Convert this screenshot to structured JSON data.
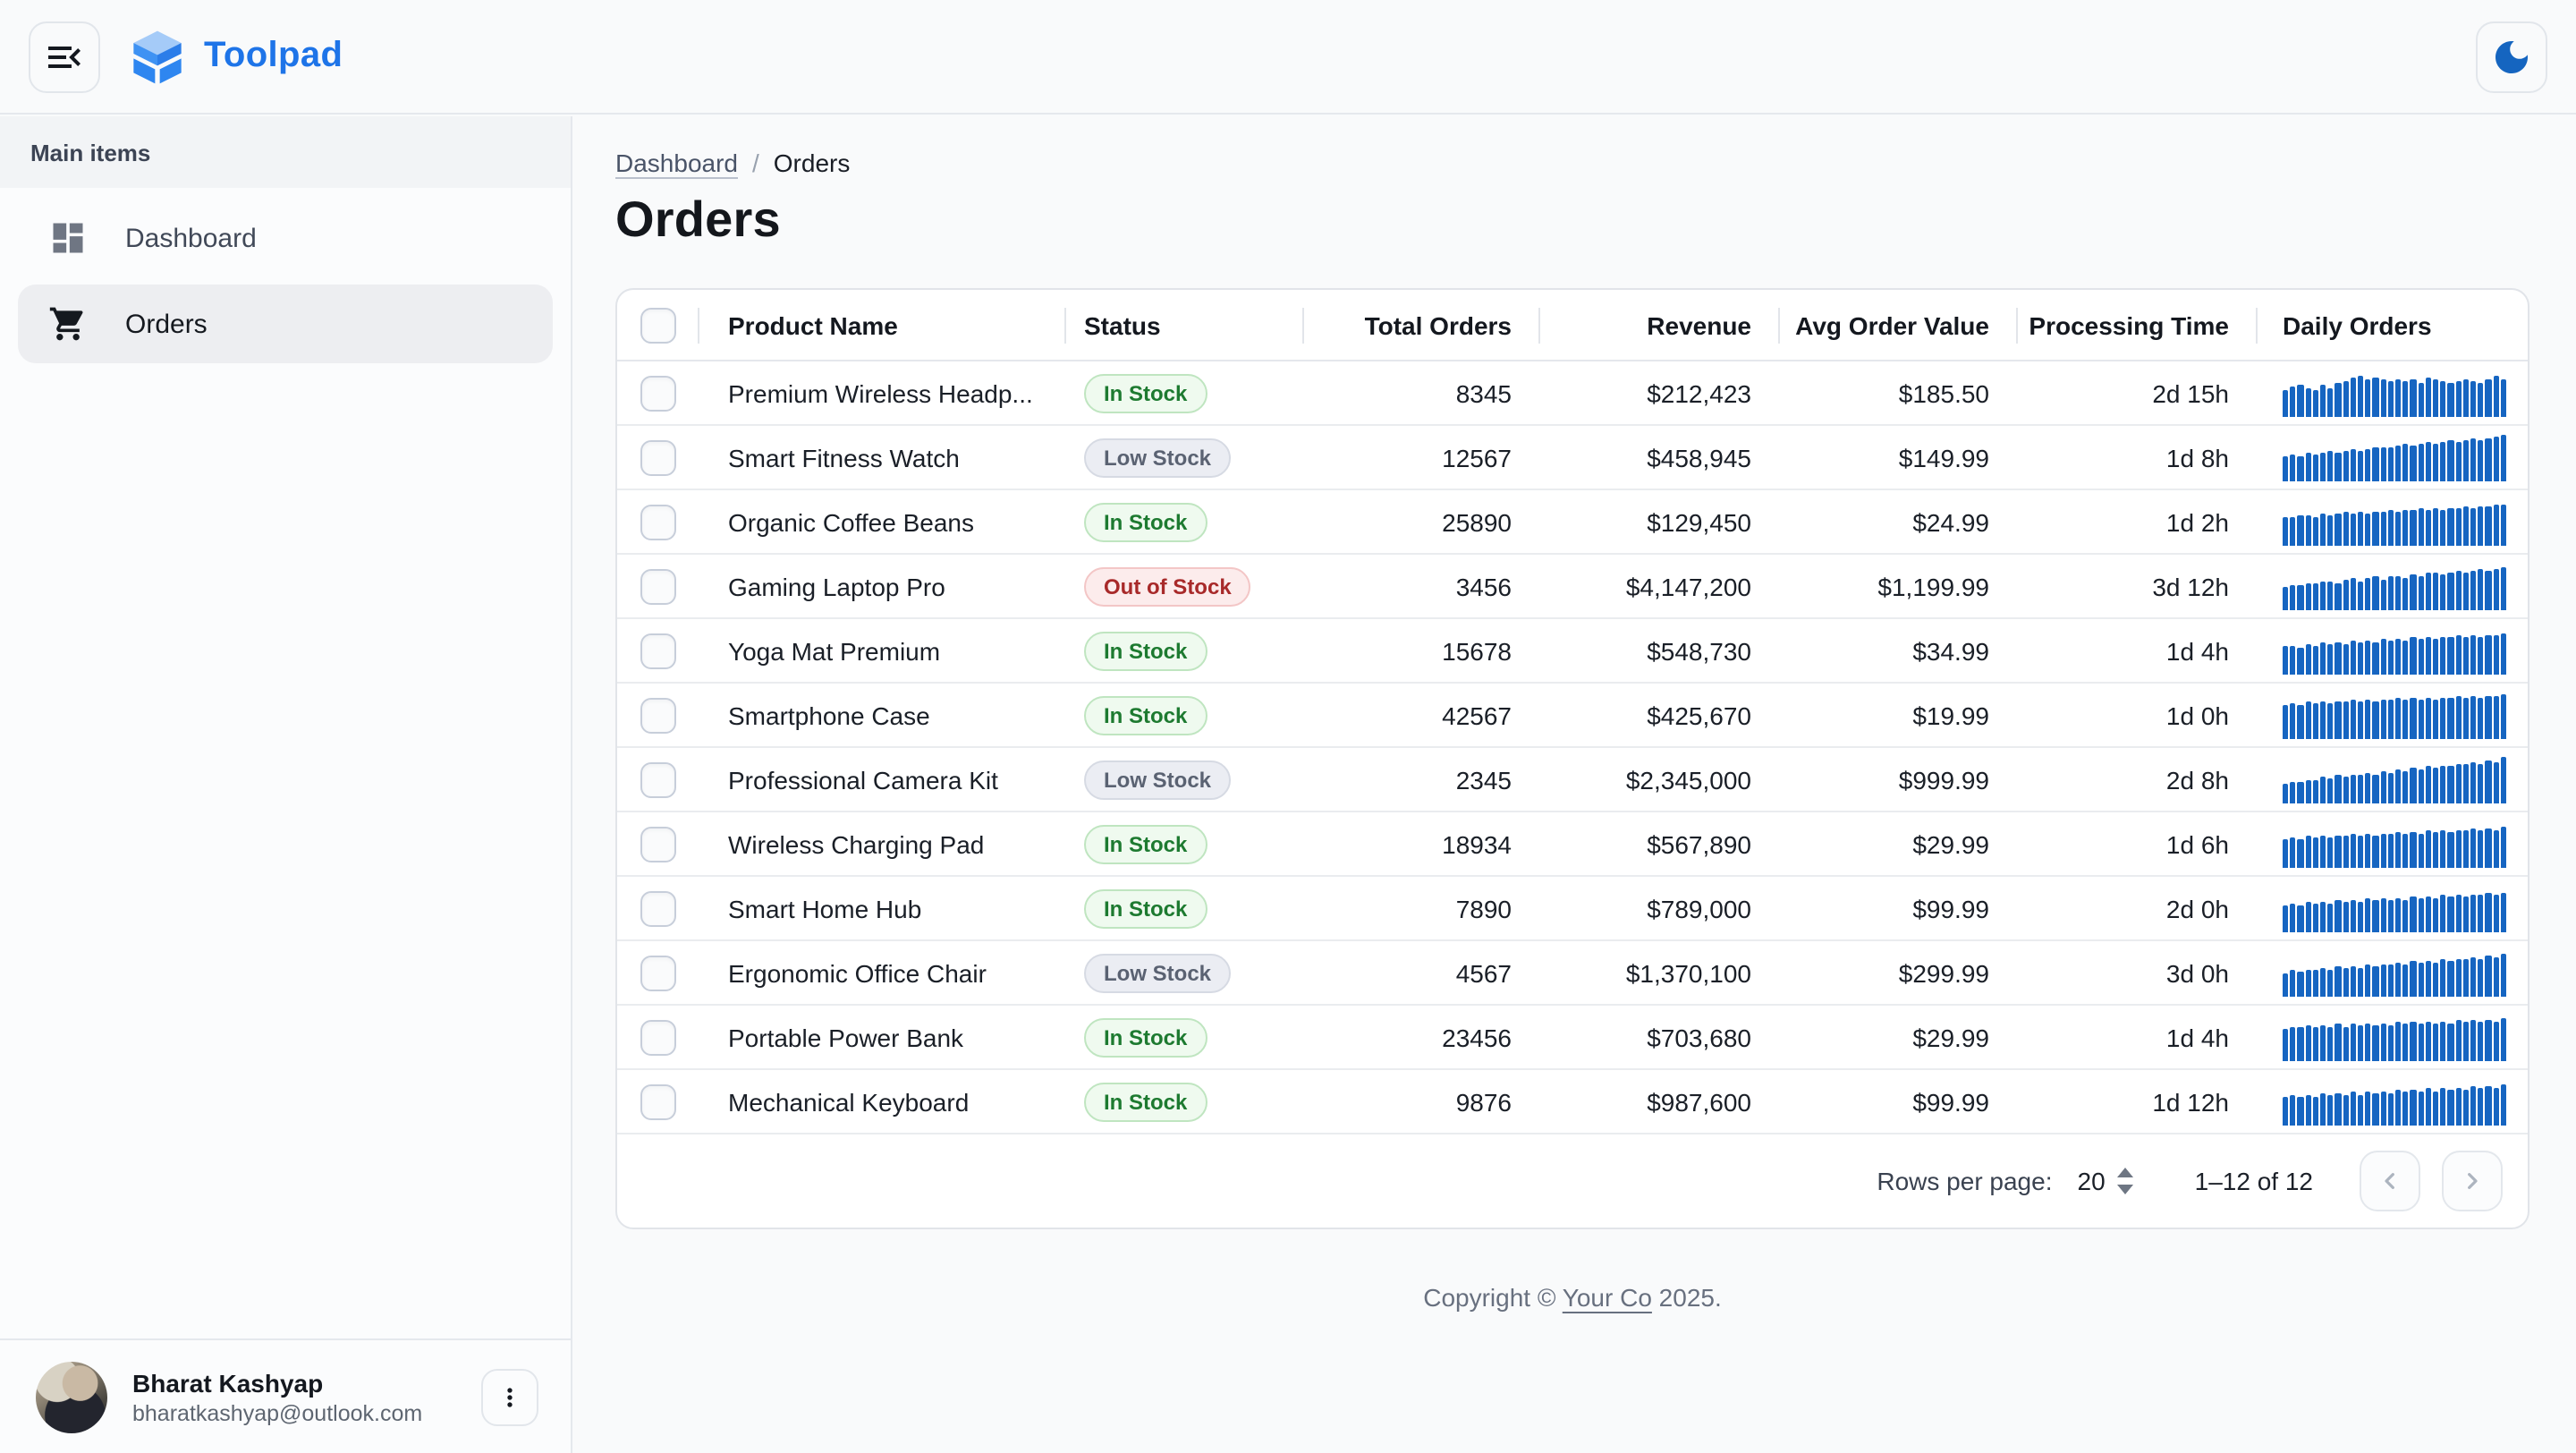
{
  "brand": {
    "name": "Toolpad"
  },
  "sidebar": {
    "section_label": "Main items",
    "items": [
      {
        "label": "Dashboard",
        "icon": "dashboard-icon",
        "selected": false
      },
      {
        "label": "Orders",
        "icon": "cart-icon",
        "selected": true
      }
    ],
    "user": {
      "name": "Bharat Kashyap",
      "email": "bharatkashyap@outlook.com"
    }
  },
  "breadcrumb": {
    "items": [
      "Dashboard",
      "Orders"
    ],
    "separator": "/"
  },
  "page": {
    "title": "Orders"
  },
  "table": {
    "columns": [
      "Product Name",
      "Status",
      "Total Orders",
      "Revenue",
      "Avg Order Value",
      "Processing Time",
      "Daily Orders"
    ],
    "rows": [
      {
        "name": "Premium Wireless Headp...",
        "status": {
          "label": "In Stock",
          "variant": "success"
        },
        "total_orders": "8345",
        "revenue": "$212,423",
        "avg_order_value": "$185.50",
        "processing_time": "2d 15h",
        "daily_orders_spark": [
          55,
          62,
          68,
          60,
          57,
          66,
          59,
          70,
          75,
          80,
          85,
          78,
          82,
          76,
          73,
          79,
          74,
          77,
          72,
          80,
          76,
          73,
          70,
          75,
          78,
          74,
          71,
          76,
          84,
          79
        ]
      },
      {
        "name": "Smart Fitness Watch",
        "status": {
          "label": "Low Stock",
          "variant": "default"
        },
        "total_orders": "12567",
        "revenue": "$458,945",
        "avg_order_value": "$149.99",
        "processing_time": "1d 8h",
        "daily_orders_spark": [
          52,
          55,
          53,
          58,
          56,
          60,
          62,
          59,
          64,
          66,
          63,
          68,
          70,
          72,
          69,
          74,
          76,
          73,
          78,
          80,
          77,
          82,
          84,
          81,
          86,
          88,
          85,
          90,
          94,
          97
        ]
      },
      {
        "name": "Organic Coffee Beans",
        "status": {
          "label": "In Stock",
          "variant": "success"
        },
        "total_orders": "25890",
        "revenue": "$129,450",
        "avg_order_value": "$24.99",
        "processing_time": "1d 2h",
        "daily_orders_spark": [
          60,
          58,
          62,
          64,
          61,
          65,
          63,
          67,
          69,
          66,
          70,
          68,
          72,
          70,
          74,
          71,
          75,
          73,
          76,
          74,
          78,
          75,
          79,
          77,
          80,
          78,
          82,
          80,
          84,
          86
        ]
      },
      {
        "name": "Gaming Laptop Pro",
        "status": {
          "label": "Out of Stock",
          "variant": "error"
        },
        "total_orders": "3456",
        "revenue": "$4,147,200",
        "avg_order_value": "$1,199.99",
        "processing_time": "3d 12h",
        "daily_orders_spark": [
          50,
          53,
          51,
          56,
          54,
          58,
          61,
          57,
          62,
          65,
          60,
          66,
          69,
          64,
          70,
          72,
          68,
          74,
          71,
          76,
          78,
          73,
          79,
          81,
          77,
          83,
          85,
          80,
          87,
          90
        ]
      },
      {
        "name": "Yoga Mat Premium",
        "status": {
          "label": "In Stock",
          "variant": "success"
        },
        "total_orders": "15678",
        "revenue": "$548,730",
        "avg_order_value": "$34.99",
        "processing_time": "1d 4h",
        "daily_orders_spark": [
          58,
          61,
          57,
          63,
          60,
          65,
          62,
          67,
          64,
          69,
          66,
          71,
          68,
          73,
          70,
          74,
          72,
          76,
          73,
          77,
          75,
          79,
          76,
          80,
          78,
          82,
          79,
          83,
          81,
          85
        ]
      },
      {
        "name": "Smartphone Case",
        "status": {
          "label": "In Stock",
          "variant": "success"
        },
        "total_orders": "42567",
        "revenue": "$425,670",
        "avg_order_value": "$19.99",
        "processing_time": "1d 0h",
        "daily_orders_spark": [
          72,
          75,
          70,
          76,
          73,
          78,
          74,
          79,
          76,
          80,
          77,
          82,
          78,
          83,
          80,
          84,
          81,
          85,
          82,
          86,
          83,
          87,
          84,
          88,
          85,
          89,
          86,
          90,
          88,
          92
        ]
      },
      {
        "name": "Professional Camera Kit",
        "status": {
          "label": "Low Stock",
          "variant": "default"
        },
        "total_orders": "2345",
        "revenue": "$2,345,000",
        "avg_order_value": "$999.99",
        "processing_time": "2d 8h",
        "daily_orders_spark": [
          42,
          46,
          44,
          50,
          48,
          54,
          52,
          58,
          55,
          61,
          58,
          64,
          61,
          67,
          64,
          70,
          67,
          73,
          70,
          76,
          73,
          79,
          76,
          82,
          80,
          86,
          83,
          90,
          87,
          95
        ]
      },
      {
        "name": "Wireless Charging Pad",
        "status": {
          "label": "In Stock",
          "variant": "success"
        },
        "total_orders": "18934",
        "revenue": "$567,890",
        "avg_order_value": "$29.99",
        "processing_time": "1d 6h",
        "daily_orders_spark": [
          60,
          63,
          59,
          65,
          62,
          67,
          63,
          68,
          65,
          70,
          66,
          71,
          68,
          72,
          69,
          74,
          70,
          75,
          72,
          76,
          73,
          78,
          74,
          79,
          76,
          80,
          77,
          82,
          79,
          84
        ]
      },
      {
        "name": "Smart Home Hub",
        "status": {
          "label": "In Stock",
          "variant": "success"
        },
        "total_orders": "7890",
        "revenue": "$789,000",
        "avg_order_value": "$99.99",
        "processing_time": "2d 0h",
        "daily_orders_spark": [
          56,
          60,
          57,
          62,
          59,
          64,
          60,
          66,
          62,
          67,
          64,
          69,
          65,
          70,
          67,
          72,
          68,
          73,
          70,
          75,
          71,
          76,
          73,
          78,
          74,
          79,
          76,
          81,
          78,
          83
        ]
      },
      {
        "name": "Ergonomic Office Chair",
        "status": {
          "label": "Low Stock",
          "variant": "default"
        },
        "total_orders": "4567",
        "revenue": "$1,370,100",
        "avg_order_value": "$299.99",
        "processing_time": "3d 0h",
        "daily_orders_spark": [
          50,
          54,
          52,
          57,
          55,
          60,
          57,
          62,
          59,
          64,
          61,
          66,
          63,
          68,
          65,
          70,
          67,
          73,
          69,
          75,
          71,
          77,
          73,
          79,
          76,
          82,
          78,
          85,
          81,
          88
        ]
      },
      {
        "name": "Portable Power Bank",
        "status": {
          "label": "In Stock",
          "variant": "success"
        },
        "total_orders": "23456",
        "revenue": "$703,680",
        "avg_order_value": "$29.99",
        "processing_time": "1d 4h",
        "daily_orders_spark": [
          68,
          72,
          69,
          74,
          70,
          75,
          71,
          76,
          72,
          77,
          73,
          78,
          74,
          79,
          75,
          80,
          76,
          81,
          77,
          82,
          78,
          83,
          79,
          84,
          80,
          85,
          81,
          86,
          83,
          88
        ]
      },
      {
        "name": "Mechanical Keyboard",
        "status": {
          "label": "In Stock",
          "variant": "success"
        },
        "total_orders": "9876",
        "revenue": "$987,600",
        "avg_order_value": "$99.99",
        "processing_time": "1d 12h",
        "daily_orders_spark": [
          58,
          62,
          59,
          64,
          60,
          66,
          62,
          67,
          63,
          69,
          64,
          70,
          66,
          72,
          67,
          73,
          69,
          75,
          70,
          76,
          72,
          78,
          73,
          79,
          75,
          81,
          76,
          83,
          78,
          85
        ]
      }
    ]
  },
  "pagination": {
    "rows_per_page_label": "Rows per page:",
    "rows_per_page": "20",
    "range": "1–12 of 12"
  },
  "footer": {
    "prefix": "Copyright © ",
    "link": "Your Co",
    "suffix": " 2025."
  },
  "colors": {
    "accent_blue": "#1E74E8",
    "spark_blue": "#1665C1",
    "moon_blue": "#1565C0"
  }
}
